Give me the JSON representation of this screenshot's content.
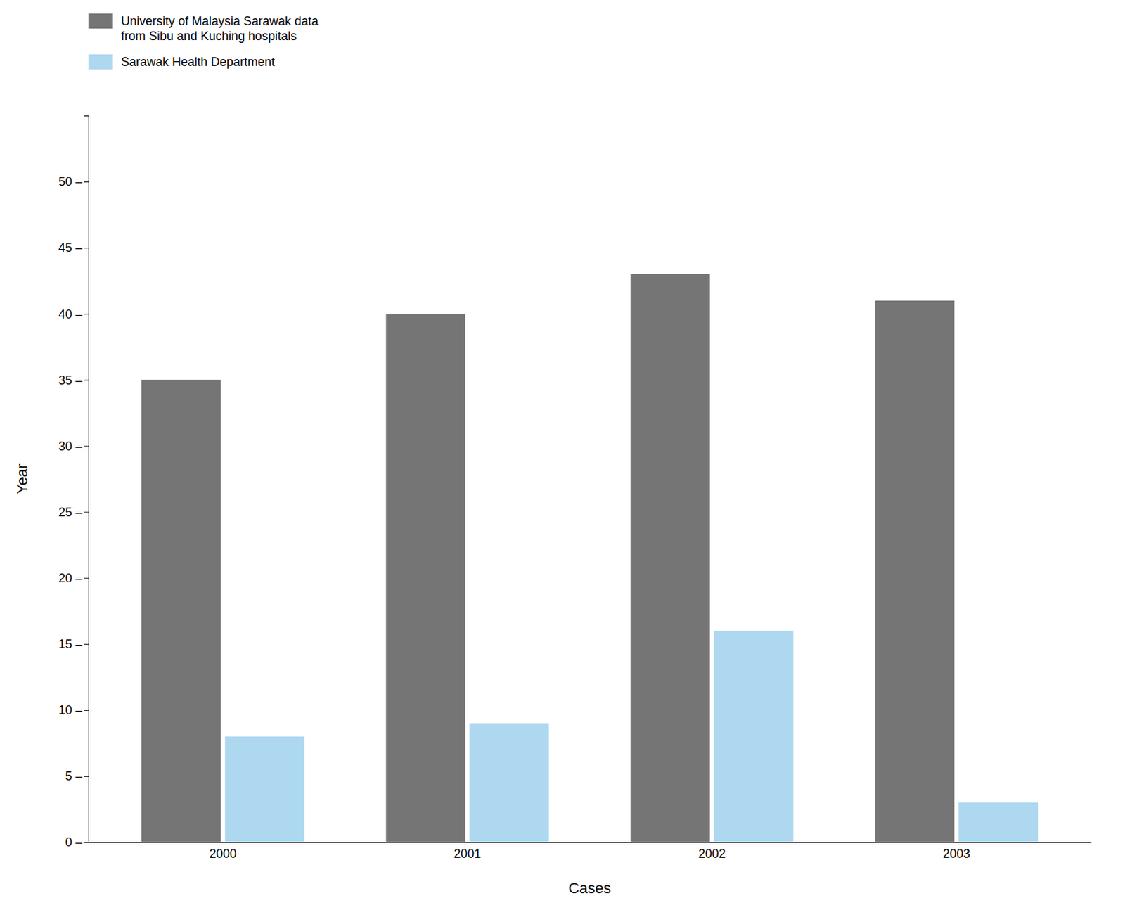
{
  "chart_data": {
    "type": "bar",
    "x_label": "Cases",
    "y_label": "Year",
    "categories": [
      "2000",
      "2001",
      "2002",
      "2003"
    ],
    "series": [
      {
        "name": "University of Malaysia Sarawak data\nfrom Sibu and Kuching hospitals",
        "color": "#757575",
        "values": [
          35,
          40,
          43,
          41
        ]
      },
      {
        "name": "Sarawak Health Department",
        "color": "#add8f0",
        "values": [
          8,
          9,
          16,
          3
        ]
      }
    ],
    "ylim": [
      0,
      55
    ],
    "yticks": [
      {
        "value": 0,
        "label": "0 –"
      },
      {
        "value": 5,
        "label": "5 –"
      },
      {
        "value": 10,
        "label": "10 –"
      },
      {
        "value": 15,
        "label": "15 –"
      },
      {
        "value": 20,
        "label": "20 –"
      },
      {
        "value": 25,
        "label": "25 –"
      },
      {
        "value": 30,
        "label": "30 –"
      },
      {
        "value": 35,
        "label": "35 –"
      },
      {
        "value": 40,
        "label": "40 –"
      },
      {
        "value": 45,
        "label": "45 –"
      },
      {
        "value": 50,
        "label": "50 –"
      }
    ],
    "grid": false,
    "legend": "upper left"
  }
}
